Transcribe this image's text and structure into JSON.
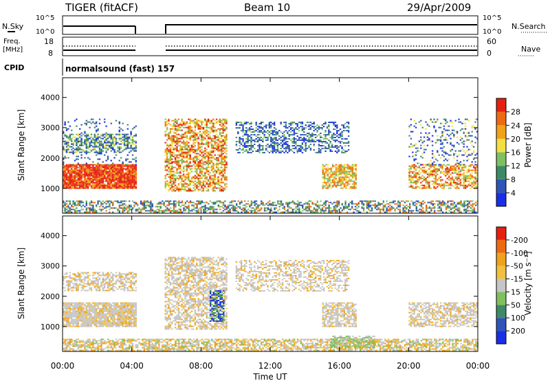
{
  "header": {
    "station": "TIGER (fitACF)",
    "beam": "Beam 10",
    "date": "29/Apr/2009"
  },
  "status_panels": {
    "nsky_label": "N.Sky",
    "nsky_ticks": [
      "10^5",
      "10^0"
    ],
    "nsearch_label": "N.Search",
    "freq_label_line1": "Freq.",
    "freq_label_line2": "[MHz]",
    "freq_ticks": [
      "18",
      "8"
    ],
    "nave_label": "Nave",
    "nave_ticks": [
      "60",
      "0"
    ],
    "cpid_label": "CPID",
    "cpid_value": "normalsound (fast) 157"
  },
  "chart_data": [
    {
      "type": "heatmap",
      "title": "",
      "xlabel": "Time UT",
      "ylabel": "Slant Range [km]",
      "x_ticks": [
        "00:00",
        "04:00",
        "08:00",
        "12:00",
        "16:00",
        "20:00",
        "00:00"
      ],
      "xlim_hours": [
        0,
        24
      ],
      "y_ticks": [
        1000,
        2000,
        3000,
        4000
      ],
      "ylim": [
        180,
        4650
      ],
      "data_gap_hours": [
        4.2,
        5.9
      ],
      "colorbar": {
        "label": "Power [dB]",
        "ticks": [
          "4",
          "8",
          "12",
          "16",
          "20",
          "24",
          "28"
        ],
        "colors": [
          "#1a2ee8",
          "#2f53b8",
          "#3e8a66",
          "#7fc060",
          "#f2e040",
          "#f0a21a",
          "#ee6a12",
          "#e52010"
        ]
      },
      "echo_regions": [
        {
          "name": "dense near-range band",
          "t": [
            0,
            4.2
          ],
          "range": [
            1000,
            1800
          ],
          "level": 7
        },
        {
          "name": "upper band early",
          "t": [
            0,
            4.2
          ],
          "range": [
            2200,
            2800
          ],
          "level": 4
        },
        {
          "name": "morning feature",
          "t": [
            5.9,
            9.5
          ],
          "range": [
            900,
            3300
          ],
          "level": 6
        },
        {
          "name": "midday far-range patch",
          "t": [
            10.0,
            16.5
          ],
          "range": [
            2200,
            3200
          ],
          "level": 2
        },
        {
          "name": "afternoon descending echo",
          "t": [
            15.0,
            17.0
          ],
          "range": [
            1000,
            1800
          ],
          "level": 5
        },
        {
          "name": "evening near-range band",
          "t": [
            20.0,
            24.0
          ],
          "range": [
            1000,
            1800
          ],
          "level": 6
        },
        {
          "name": "ground scatter strip",
          "t": [
            0,
            24
          ],
          "range": [
            200,
            600
          ],
          "level": 3
        }
      ]
    },
    {
      "type": "heatmap",
      "title": "",
      "xlabel": "Time UT",
      "ylabel": "Slant Range [km]",
      "x_ticks": [
        "00:00",
        "04:00",
        "08:00",
        "12:00",
        "16:00",
        "20:00",
        "00:00"
      ],
      "xlim_hours": [
        0,
        24
      ],
      "y_ticks": [
        1000,
        2000,
        3000,
        4000
      ],
      "ylim": [
        180,
        4650
      ],
      "data_gap_hours": [
        4.2,
        5.9
      ],
      "colorbar": {
        "label": "Velocity [m s⁻¹]",
        "ticks": [
          "200",
          "100",
          "50",
          "15",
          "-15",
          "-50",
          "-100",
          "-200"
        ],
        "colors": [
          "#1a2ee8",
          "#2f53b8",
          "#3e8a66",
          "#7fc060",
          "#c6c6c6",
          "#f2c040",
          "#f0a21a",
          "#ee6a12",
          "#e52010"
        ]
      },
      "echo_regions": [
        {
          "name": "mostly near-zero velocities",
          "t": [
            0,
            24
          ],
          "range": [
            200,
            3300
          ],
          "velocity": "-15 to 15"
        },
        {
          "name": "morning positive velocity edge",
          "t": [
            8.5,
            9.3
          ],
          "range": [
            1200,
            2200
          ],
          "velocity": "50 to 100"
        },
        {
          "name": "afternoon positive velocity strip",
          "t": [
            15.5,
            18.0
          ],
          "range": [
            300,
            700
          ],
          "velocity": "15 to 50"
        }
      ]
    }
  ]
}
